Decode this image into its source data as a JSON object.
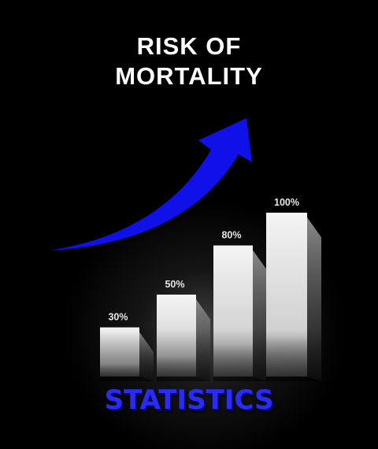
{
  "title": {
    "line1": "RISK OF",
    "line2": "MORTALITY"
  },
  "watermark_text": "STATISTICS",
  "colors": {
    "background": "#000000",
    "arrow": "#1010e8",
    "bar": "#e8e8e8",
    "watermark": "#2a2cf0",
    "title": "#ffffff"
  },
  "icons": {
    "trend_arrow": "upward-curved-arrow-icon"
  },
  "chart_data": {
    "type": "bar",
    "categories": [
      "",
      "",
      "",
      ""
    ],
    "values": [
      30,
      50,
      80,
      100
    ],
    "data_labels": [
      "30%",
      "50%",
      "80%",
      "100%"
    ],
    "title": "RISK OF MORTALITY",
    "xlabel": "",
    "ylabel": "",
    "ylim": [
      0,
      100
    ],
    "grid": false,
    "legend": "none"
  }
}
